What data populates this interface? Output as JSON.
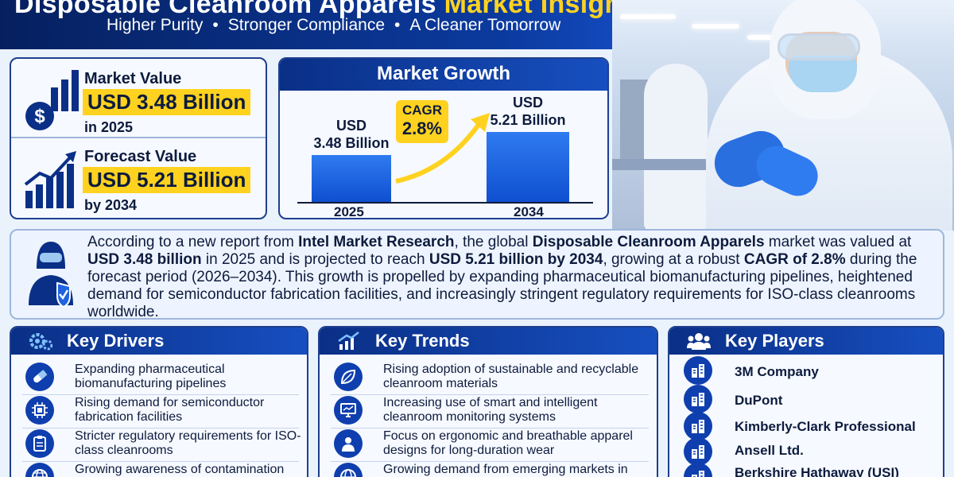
{
  "header": {
    "title_main": "Disposable Cleanroom Apparels",
    "title_highlight": "Market Insights",
    "tagline": [
      "Higher Purity",
      "Stronger Compliance",
      "A Cleaner Tomorrow"
    ],
    "separator": "•"
  },
  "stats": [
    {
      "label": "Market Value",
      "value": "USD 3.48 Billion",
      "year": "in 2025",
      "icon": "dollar-bar-chart-icon"
    },
    {
      "label": "Forecast Value",
      "value": "USD 5.21 Billion",
      "year": "by 2034",
      "icon": "growth-chart-icon"
    }
  ],
  "growth": {
    "title": "Market Growth",
    "cagr_label": "CAGR",
    "cagr_value": "2.8%",
    "bars": [
      {
        "year": "2025",
        "label_line1": "USD",
        "label_line2": "3.48 Billion",
        "value": 3.48
      },
      {
        "year": "2034",
        "label_line1": "USD",
        "label_line2": "5.21 Billion",
        "value": 5.21
      }
    ]
  },
  "description": {
    "icon": "protected-worker-icon",
    "p1": "According to a new report from ",
    "b1": "Intel Market Research",
    "p2": ", the global ",
    "b2": "Disposable Cleanroom Apparels",
    "p3": " market was valued at ",
    "b3": "USD 3.48 billion",
    "p4": " in 2025 and is projected to reach ",
    "b4": "USD 5.21 billion by 2034",
    "p5": ", growing at a robust ",
    "b5": "CAGR of 2.8%",
    "p6": " during the forecast period (2026–2034). This growth is propelled by expanding pharmaceutical biomanufacturing pipelines, heightened demand for semiconductor fabrication facilities, and increasingly stringent regulatory requirements for ISO-class cleanrooms worldwide."
  },
  "drivers": {
    "title": "Key Drivers",
    "icon": "gears-icon",
    "items": [
      {
        "text": "Expanding pharmaceutical biomanufacturing pipelines",
        "icon": "capsule-icon"
      },
      {
        "text": "Rising demand for semiconductor fabrication facilities",
        "icon": "chip-icon"
      },
      {
        "text": "Stricter regulatory requirements for ISO-class cleanrooms",
        "icon": "clipboard-icon"
      },
      {
        "text": "Growing awareness of contamination",
        "icon": "globe-icon"
      }
    ]
  },
  "trends": {
    "title": "Key Trends",
    "icon": "trend-chart-icon",
    "items": [
      {
        "text": "Rising adoption of sustainable and recyclable cleanroom materials",
        "icon": "leaf-icon"
      },
      {
        "text": "Increasing use of smart and intelligent cleanroom monitoring systems",
        "icon": "monitor-icon"
      },
      {
        "text": "Focus on ergonomic and breathable apparel designs for long-duration wear",
        "icon": "person-icon"
      },
      {
        "text": "Growing demand from emerging markets in Asia-Pacific and Middle East",
        "icon": "globe-icon"
      }
    ]
  },
  "players": {
    "title": "Key Players",
    "icon": "people-icon",
    "items": [
      {
        "name": "3M Company",
        "icon": "building-icon"
      },
      {
        "name": "DuPont",
        "icon": "building-icon"
      },
      {
        "name": "Kimberly-Clark Professional",
        "icon": "building-icon"
      },
      {
        "name": "Ansell Ltd.",
        "icon": "building-icon"
      },
      {
        "name": "Berkshire Hathaway (USI)",
        "icon": "building-icon"
      }
    ]
  },
  "colors": {
    "navy": "#0a2f86",
    "accent_yellow": "#ffd21f",
    "bar_blue": "#1f63e0"
  }
}
